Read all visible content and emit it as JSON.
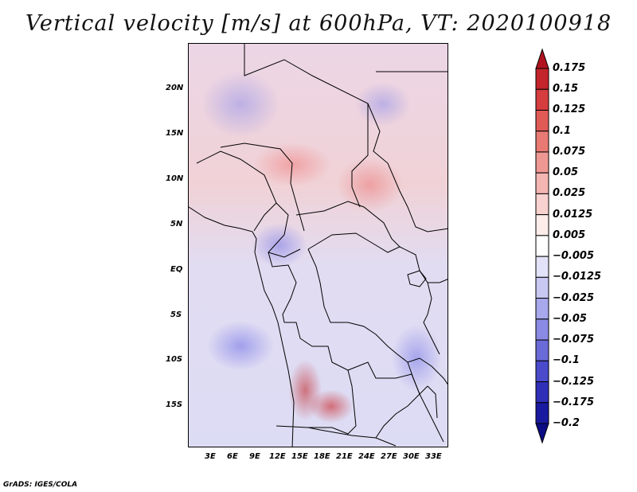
{
  "title": "Vertical velocity [m/s] at 600hPa, VT: 2020100918",
  "footer": "GrADS: IGES/COLA",
  "map": {
    "variable": "Vertical velocity",
    "units": "m/s",
    "level": "600hPa",
    "valid_time": "2020100918",
    "lat_labels": [
      "20N",
      "15N",
      "10N",
      "5N",
      "EQ",
      "5S",
      "10S",
      "15S"
    ],
    "lon_labels": [
      "3E",
      "6E",
      "9E",
      "12E",
      "15E",
      "18E",
      "21E",
      "24E",
      "27E",
      "30E",
      "33E"
    ]
  },
  "colorbar": {
    "labels": [
      "0.175",
      "0.15",
      "0.125",
      "0.1",
      "0.075",
      "0.05",
      "0.025",
      "0.0125",
      "0.005",
      "−0.005",
      "−0.0125",
      "−0.025",
      "−0.05",
      "−0.075",
      "−0.1",
      "−0.125",
      "−0.175",
      "−0.2"
    ],
    "colors": [
      "#b0131f",
      "#c4242b",
      "#d53d3f",
      "#e05a56",
      "#e87a73",
      "#ef9893",
      "#f4b6b2",
      "#f8d2cf",
      "#fcecea",
      "#ffffff",
      "#e2e2f8",
      "#c8c8f2",
      "#a8a8ec",
      "#8a8ae4",
      "#6a6ad8",
      "#4a4acb",
      "#2f2fb8",
      "#1a1aa0",
      "#0c0c85"
    ]
  }
}
